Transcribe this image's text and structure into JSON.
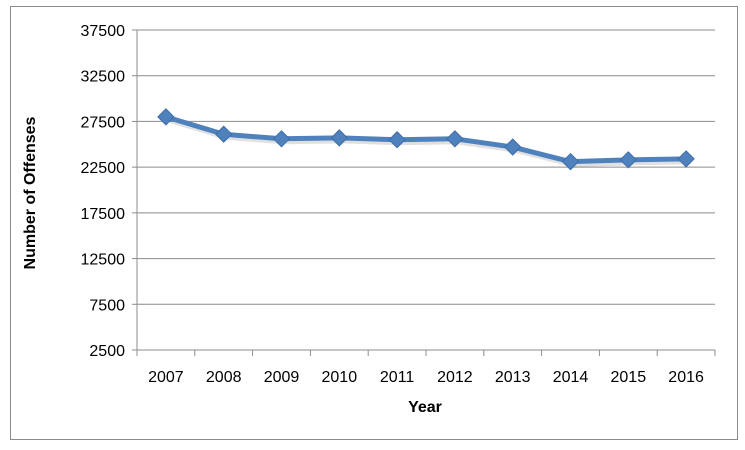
{
  "chart_data": {
    "type": "line",
    "title": "",
    "xlabel": "Year",
    "ylabel": "Number of Offenses",
    "categories": [
      "2007",
      "2008",
      "2009",
      "2010",
      "2011",
      "2012",
      "2013",
      "2014",
      "2015",
      "2016"
    ],
    "series": [
      {
        "values": [
          28000,
          26100,
          25600,
          25700,
          25500,
          25600,
          24700,
          23100,
          23300,
          23400
        ],
        "color": "#4f81bd"
      }
    ],
    "yticks": [
      "2500",
      "7500",
      "12500",
      "17500",
      "22500",
      "27500",
      "32500",
      "37500"
    ],
    "ylim": [
      2500,
      37500
    ],
    "grid": true,
    "legend": "none",
    "marker": "diamond"
  }
}
